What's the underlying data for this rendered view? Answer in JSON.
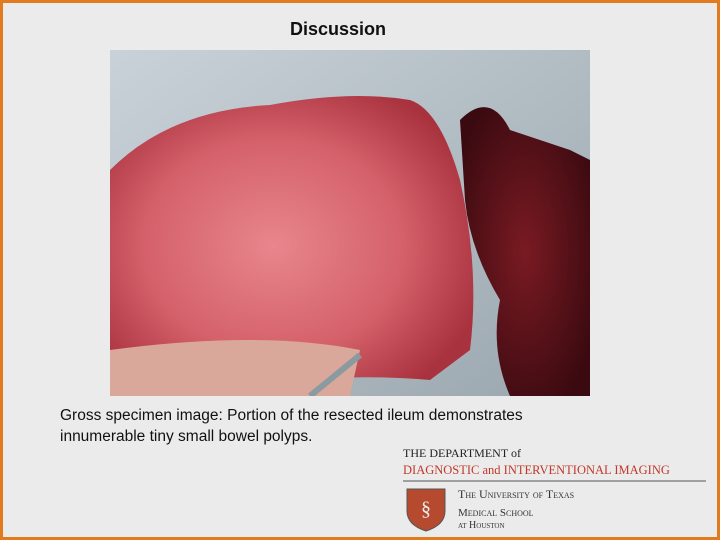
{
  "slide": {
    "title": "Discussion",
    "caption": [
      "Gross specimen image: Portion of the resected ileum demonstrates",
      "innumerable tiny small bowel polyps."
    ],
    "logo": {
      "department": "THE DEPARTMENT of",
      "division": "DIAGNOSTIC and INTERVENTIONAL IMAGING",
      "university": "The University of Texas",
      "school": "Medical School",
      "location": "at Houston"
    }
  }
}
